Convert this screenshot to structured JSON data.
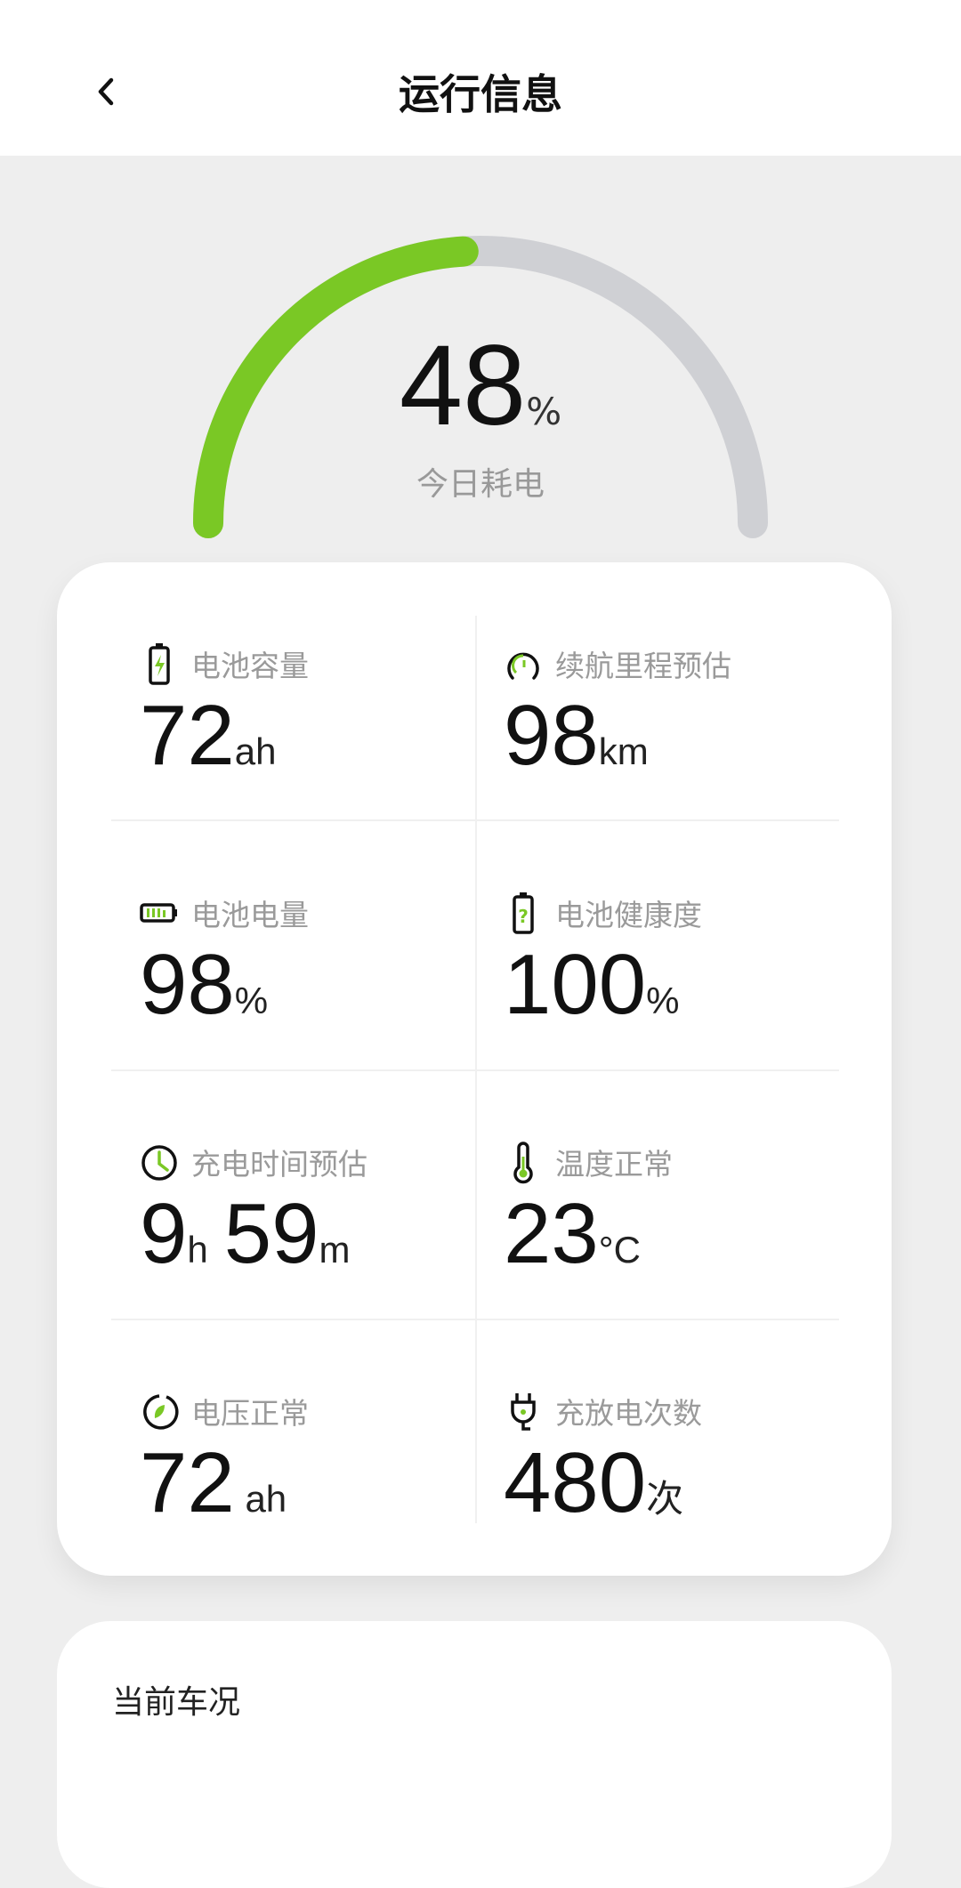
{
  "header": {
    "title": "运行信息",
    "back_icon": "chevron-left-icon"
  },
  "gauge": {
    "value": "48",
    "unit": "%",
    "label": "今日耗电",
    "fraction": 0.48,
    "colors": {
      "fill": "#7ac825",
      "track": "#cfd0d4"
    }
  },
  "stats": [
    {
      "icon": "battery-charge-icon",
      "label": "电池容量",
      "value": "72",
      "unit": "ah"
    },
    {
      "icon": "speedometer-icon",
      "label": "续航里程预估",
      "value": "98",
      "unit": "km"
    },
    {
      "icon": "battery-level-icon",
      "label": "电池电量",
      "value": "98",
      "unit": "%"
    },
    {
      "icon": "battery-health-icon",
      "label": "电池健康度",
      "value": "100",
      "unit": "%"
    },
    {
      "icon": "clock-icon",
      "label": "充电时间预估",
      "value": "9",
      "unit": "h",
      "value2": "59",
      "unit2": "m"
    },
    {
      "icon": "thermometer-icon",
      "label": "温度正常",
      "value": "23",
      "unit": "°C"
    },
    {
      "icon": "voltage-leaf-icon",
      "label": "电压正常",
      "value": "72",
      "unit": " ah"
    },
    {
      "icon": "plug-icon",
      "label": "充放电次数",
      "value": "480",
      "unit": "次"
    }
  ],
  "section2": {
    "title": "当前车况"
  },
  "accent": "#7ac825"
}
